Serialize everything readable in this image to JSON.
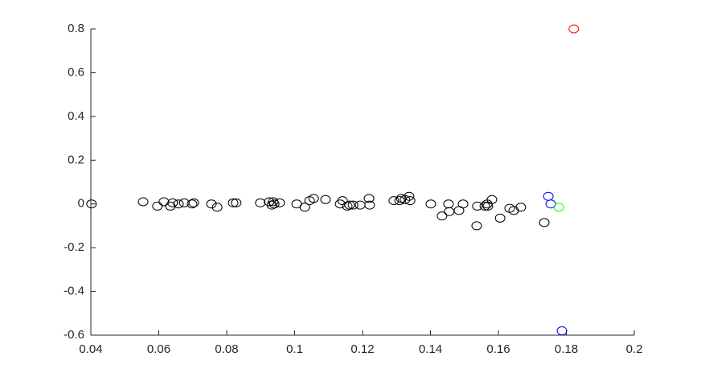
{
  "chart_data": {
    "type": "scatter",
    "xlim": [
      0.04,
      0.2
    ],
    "ylim": [
      -0.6,
      0.8
    ],
    "xticks": [
      0.04,
      0.06,
      0.08,
      0.1,
      0.12,
      0.14,
      0.16,
      0.18,
      0.2
    ],
    "yticks": [
      -0.6,
      -0.4,
      -0.2,
      0,
      0.2,
      0.4,
      0.6,
      0.8
    ],
    "marker": "open-circle",
    "series": [
      {
        "color": "#000000",
        "x": [
          0.0402,
          0.0554,
          0.0596,
          0.0615,
          0.0634,
          0.0641,
          0.0658,
          0.0675,
          0.0698,
          0.0703,
          0.0755,
          0.0772,
          0.0819,
          0.0828,
          0.0899,
          0.0925,
          0.0933,
          0.0937,
          0.094,
          0.0956,
          0.1006,
          0.103,
          0.1044,
          0.1056,
          0.1091,
          0.1134,
          0.1141,
          0.1155,
          0.1162,
          0.1172,
          0.1193,
          0.1219,
          0.1221,
          0.1292,
          0.1309,
          0.1314,
          0.1325,
          0.1337,
          0.134,
          0.1401,
          0.1434,
          0.1453,
          0.1455,
          0.1484,
          0.1496,
          0.1536,
          0.1538,
          0.156,
          0.1567,
          0.1569,
          0.1581,
          0.1605,
          0.1633,
          0.1645,
          0.1666,
          0.1735
        ],
        "y": [
          0,
          0.01,
          -0.01,
          0.01,
          -0.01,
          0.005,
          0,
          0.005,
          0,
          0.005,
          0,
          -0.015,
          0.005,
          0.005,
          0.005,
          0.01,
          -0.005,
          0.01,
          0,
          0.005,
          0,
          -0.015,
          0.015,
          0.025,
          0.02,
          0,
          0.015,
          -0.01,
          -0.005,
          -0.005,
          -0.005,
          0.025,
          -0.005,
          0.015,
          0.015,
          0.025,
          0.02,
          0.035,
          0.015,
          0,
          -0.055,
          0,
          -0.035,
          -0.03,
          0,
          -0.1,
          -0.01,
          -0.01,
          0,
          -0.01,
          0.02,
          -0.065,
          -0.02,
          -0.03,
          -0.015,
          -0.085
        ]
      },
      {
        "color": "#0000ff",
        "x": [
          0.1747,
          0.1754,
          0.1787
        ],
        "y": [
          0.035,
          0,
          -0.58
        ]
      },
      {
        "color": "#00ff00",
        "x": [
          0.1778
        ],
        "y": [
          -0.015
        ]
      },
      {
        "color": "#ff0000",
        "x": [
          0.1822
        ],
        "y": [
          0.8
        ]
      }
    ]
  }
}
